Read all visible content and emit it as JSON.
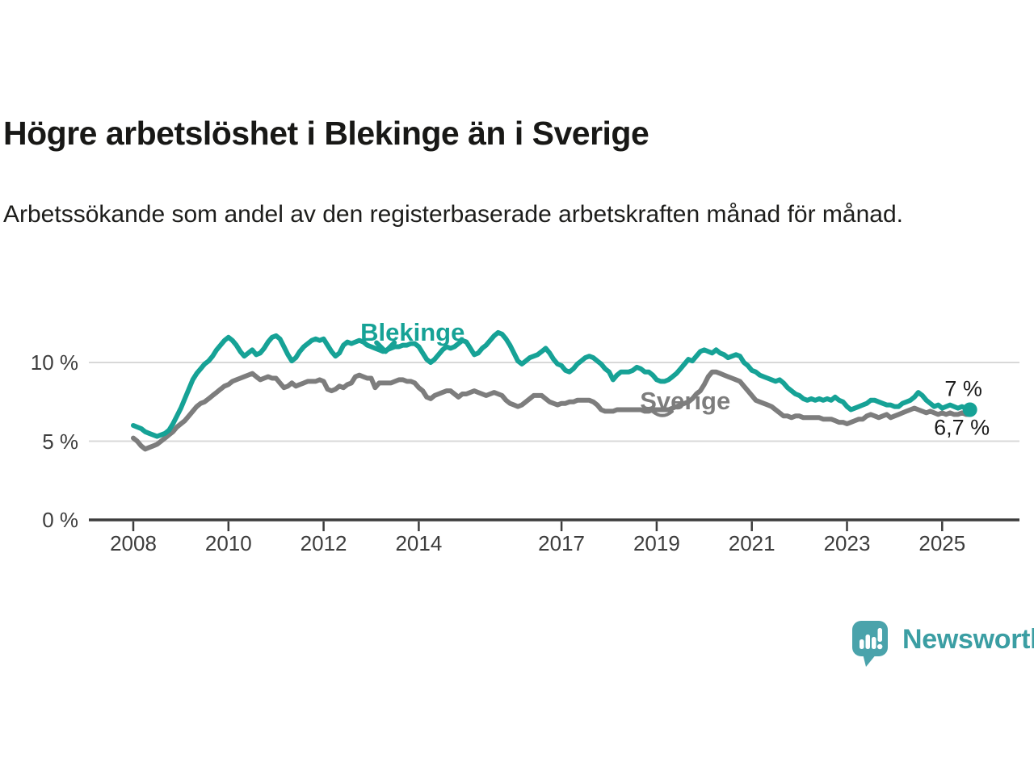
{
  "title": "Högre arbetslöshet i Blekinge än i Sverige",
  "subtitle": "Arbetssökande som andel av den registerbaserade arbetskraften månad för månad.",
  "branding": {
    "logo_text": "Newsworthy",
    "logo_text_color": "#3b9ea3",
    "logo_icon_color": "#4aa3ab"
  },
  "chart_data": {
    "type": "line",
    "frequency": "monthly",
    "start": "2008-01",
    "end": "2025-08",
    "unit": "%",
    "ylim": [
      0,
      12.8
    ],
    "grid": "horizontal-light",
    "axis_color": "#3d3d3d",
    "gridline_color": "#d8d8d8",
    "yticks": [
      {
        "value": 0,
        "label": "0 %"
      },
      {
        "value": 5,
        "label": "5 %"
      },
      {
        "value": 10,
        "label": "10 %"
      }
    ],
    "xticks": [
      {
        "year": 2008,
        "label": "2008"
      },
      {
        "year": 2010,
        "label": "2010"
      },
      {
        "year": 2012,
        "label": "2012"
      },
      {
        "year": 2014,
        "label": "2014"
      },
      {
        "year": 2017,
        "label": "2017"
      },
      {
        "year": 2019,
        "label": "2019"
      },
      {
        "year": 2021,
        "label": "2021"
      },
      {
        "year": 2023,
        "label": "2023"
      },
      {
        "year": 2025,
        "label": "2025"
      }
    ],
    "series": [
      {
        "name": "Blekinge",
        "color": "#16a296",
        "end_label": "7 %",
        "last_value": 7.0,
        "values": [
          6.0,
          5.9,
          5.8,
          5.6,
          5.5,
          5.4,
          5.3,
          5.4,
          5.5,
          5.7,
          6.1,
          6.6,
          7.1,
          7.7,
          8.3,
          8.9,
          9.3,
          9.6,
          9.9,
          10.1,
          10.4,
          10.8,
          11.1,
          11.4,
          11.6,
          11.4,
          11.1,
          10.7,
          10.4,
          10.6,
          10.8,
          10.5,
          10.6,
          10.9,
          11.3,
          11.6,
          11.7,
          11.5,
          11.0,
          10.5,
          10.1,
          10.3,
          10.7,
          11.0,
          11.2,
          11.4,
          11.5,
          11.4,
          11.5,
          11.1,
          10.7,
          10.4,
          10.6,
          11.1,
          11.3,
          11.2,
          11.3,
          11.4,
          11.3,
          11.1,
          11.0,
          10.9,
          10.8,
          10.7,
          10.8,
          10.9,
          11.0,
          11.0,
          11.1,
          11.1,
          11.2,
          11.2,
          11.0,
          10.6,
          10.2,
          10.0,
          10.2,
          10.5,
          10.8,
          11.0,
          10.9,
          11.0,
          11.2,
          11.4,
          11.3,
          10.9,
          10.5,
          10.6,
          10.9,
          11.1,
          11.4,
          11.7,
          11.9,
          11.8,
          11.5,
          11.1,
          10.6,
          10.1,
          9.9,
          10.1,
          10.3,
          10.4,
          10.5,
          10.7,
          10.9,
          10.6,
          10.2,
          9.9,
          9.8,
          9.5,
          9.4,
          9.6,
          9.9,
          10.1,
          10.3,
          10.4,
          10.3,
          10.1,
          9.9,
          9.6,
          9.4,
          8.9,
          9.2,
          9.4,
          9.4,
          9.4,
          9.5,
          9.7,
          9.6,
          9.4,
          9.4,
          9.2,
          8.9,
          8.8,
          8.8,
          8.9,
          9.1,
          9.3,
          9.6,
          9.9,
          10.2,
          10.1,
          10.4,
          10.7,
          10.8,
          10.7,
          10.6,
          10.8,
          10.6,
          10.5,
          10.3,
          10.4,
          10.5,
          10.4,
          10.0,
          9.8,
          9.5,
          9.4,
          9.2,
          9.1,
          9.0,
          8.9,
          8.8,
          8.9,
          8.7,
          8.4,
          8.2,
          8.0,
          7.9,
          7.7,
          7.6,
          7.7,
          7.6,
          7.7,
          7.6,
          7.7,
          7.6,
          7.8,
          7.6,
          7.5,
          7.2,
          7.0,
          7.1,
          7.2,
          7.3,
          7.4,
          7.6,
          7.6,
          7.5,
          7.4,
          7.3,
          7.3,
          7.2,
          7.2,
          7.4,
          7.5,
          7.6,
          7.8,
          8.1,
          7.9,
          7.6,
          7.4,
          7.2,
          7.3,
          7.1,
          7.2,
          7.3,
          7.2,
          7.1,
          7.2,
          7.1,
          7.0
        ]
      },
      {
        "name": "Sverige",
        "color": "#7d7d7d",
        "end_label": "6,7 %",
        "last_value": 6.7,
        "values": [
          5.2,
          5.0,
          4.7,
          4.5,
          4.6,
          4.7,
          4.8,
          5.0,
          5.2,
          5.4,
          5.6,
          5.9,
          6.1,
          6.3,
          6.6,
          6.9,
          7.2,
          7.4,
          7.5,
          7.7,
          7.9,
          8.1,
          8.3,
          8.5,
          8.6,
          8.8,
          8.9,
          9.0,
          9.1,
          9.2,
          9.3,
          9.1,
          8.9,
          9.0,
          9.1,
          9.0,
          9.0,
          8.7,
          8.4,
          8.5,
          8.7,
          8.5,
          8.6,
          8.7,
          8.8,
          8.8,
          8.8,
          8.9,
          8.8,
          8.3,
          8.2,
          8.3,
          8.5,
          8.4,
          8.6,
          8.7,
          9.1,
          9.2,
          9.1,
          9.0,
          9.0,
          8.4,
          8.7,
          8.7,
          8.7,
          8.7,
          8.8,
          8.9,
          8.9,
          8.8,
          8.8,
          8.7,
          8.4,
          8.2,
          7.8,
          7.7,
          7.9,
          8.0,
          8.1,
          8.2,
          8.2,
          8.0,
          7.8,
          8.0,
          8.0,
          8.1,
          8.2,
          8.1,
          8.0,
          7.9,
          8.0,
          8.1,
          8.0,
          7.9,
          7.6,
          7.4,
          7.3,
          7.2,
          7.3,
          7.5,
          7.7,
          7.9,
          7.9,
          7.9,
          7.7,
          7.5,
          7.4,
          7.3,
          7.4,
          7.4,
          7.5,
          7.5,
          7.6,
          7.6,
          7.6,
          7.6,
          7.5,
          7.3,
          7.0,
          6.9,
          6.9,
          6.9,
          7.0,
          7.0,
          7.0,
          7.0,
          7.0,
          7.0,
          7.0,
          6.9,
          6.9,
          7.0,
          7.0,
          7.0,
          7.0,
          7.0,
          7.1,
          7.2,
          7.3,
          7.4,
          7.5,
          7.7,
          8.0,
          8.2,
          8.6,
          9.1,
          9.4,
          9.4,
          9.3,
          9.2,
          9.1,
          9.0,
          8.9,
          8.8,
          8.5,
          8.2,
          7.9,
          7.6,
          7.5,
          7.4,
          7.3,
          7.2,
          7.0,
          6.8,
          6.6,
          6.6,
          6.5,
          6.6,
          6.6,
          6.5,
          6.5,
          6.5,
          6.5,
          6.5,
          6.4,
          6.4,
          6.4,
          6.3,
          6.2,
          6.2,
          6.1,
          6.2,
          6.3,
          6.4,
          6.4,
          6.6,
          6.7,
          6.6,
          6.5,
          6.6,
          6.7,
          6.5,
          6.6,
          6.7,
          6.8,
          6.9,
          7.0,
          7.1,
          7.0,
          6.9,
          6.8,
          6.9,
          6.8,
          6.7,
          6.8,
          6.7,
          6.8,
          6.7,
          6.7,
          6.8,
          6.7,
          6.7
        ]
      }
    ],
    "annotations": [
      {
        "text": "Blekinge",
        "color": "#16a296",
        "anchor_year": 2013.87,
        "anchor_pct": 11.9,
        "pointer": "chevron-down",
        "pointer_year": 2013.3,
        "pointer_pct": 10.95
      },
      {
        "text": "Sverige",
        "color": "#7d7d7d",
        "anchor_year": 2019.6,
        "anchor_pct": 7.55,
        "pointer": "arc-down",
        "pointer_year": 2019.12,
        "pointer_pct": 6.68
      }
    ]
  }
}
